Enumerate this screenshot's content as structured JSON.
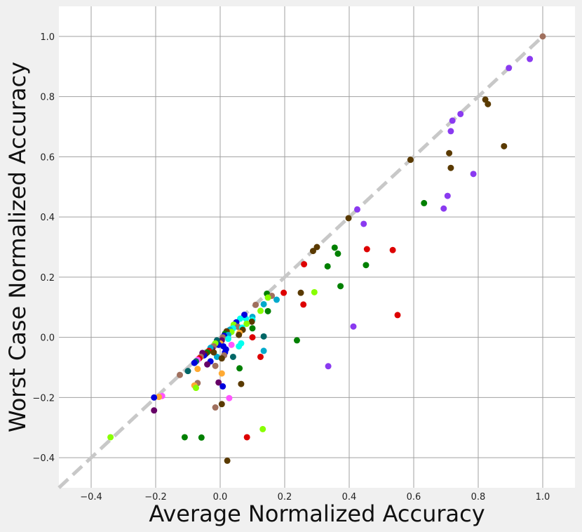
{
  "chart_data": {
    "type": "scatter",
    "title": "",
    "xlabel": "Average Normalized Accuracy",
    "ylabel": "Worst Case Normalized Accuracy",
    "xlim": [
      -0.5,
      1.1
    ],
    "ylim": [
      -0.5,
      1.1
    ],
    "xticks": [
      -0.4,
      -0.2,
      0.0,
      0.2,
      0.4,
      0.6,
      0.8,
      1.0
    ],
    "yticks": [
      -0.4,
      -0.2,
      0.0,
      0.2,
      0.4,
      0.6,
      0.8,
      1.0
    ],
    "xtick_labels": [
      "−0.4",
      "−0.2",
      "0.0",
      "0.2",
      "0.4",
      "0.6",
      "0.8",
      "1.0"
    ],
    "ytick_labels": [
      "−0.4",
      "−0.2",
      "0.0",
      "0.2",
      "0.4",
      "0.6",
      "0.8",
      "1.0"
    ],
    "grid": true,
    "reference_line": {
      "style": "dashed",
      "color": "#c8c8c8",
      "from": [
        -0.5,
        -0.5
      ],
      "to": [
        1.0,
        1.0
      ]
    },
    "colors": {
      "background": "#f0f0f0",
      "plot_area": "#ffffff",
      "grid": "#a0a0a0"
    },
    "points": [
      {
        "x": 1.0,
        "y": 1.0,
        "color": "#a0705e"
      },
      {
        "x": 0.96,
        "y": 0.925,
        "color": "#8a3af0"
      },
      {
        "x": 0.895,
        "y": 0.895,
        "color": "#8a3af0"
      },
      {
        "x": 0.822,
        "y": 0.79,
        "color": "#5a3a00"
      },
      {
        "x": 0.83,
        "y": 0.775,
        "color": "#5a3a00"
      },
      {
        "x": 0.745,
        "y": 0.742,
        "color": "#8a3af0"
      },
      {
        "x": 0.72,
        "y": 0.72,
        "color": "#8a3af0"
      },
      {
        "x": 0.715,
        "y": 0.685,
        "color": "#8a3af0"
      },
      {
        "x": 0.71,
        "y": 0.612,
        "color": "#5a3a00"
      },
      {
        "x": 0.88,
        "y": 0.635,
        "color": "#5a3a00"
      },
      {
        "x": 0.715,
        "y": 0.563,
        "color": "#5a3a00"
      },
      {
        "x": 0.59,
        "y": 0.59,
        "color": "#5a3a00"
      },
      {
        "x": 0.785,
        "y": 0.543,
        "color": "#8a3af0"
      },
      {
        "x": 0.705,
        "y": 0.47,
        "color": "#8a3af0"
      },
      {
        "x": 0.693,
        "y": 0.428,
        "color": "#8a3af0"
      },
      {
        "x": 0.632,
        "y": 0.446,
        "color": "#008000"
      },
      {
        "x": 0.425,
        "y": 0.425,
        "color": "#8a3af0"
      },
      {
        "x": 0.398,
        "y": 0.396,
        "color": "#5a3a00"
      },
      {
        "x": 0.445,
        "y": 0.377,
        "color": "#8a3af0"
      },
      {
        "x": 0.3,
        "y": 0.3,
        "color": "#5a3a00"
      },
      {
        "x": 0.288,
        "y": 0.287,
        "color": "#5a3a00"
      },
      {
        "x": 0.355,
        "y": 0.298,
        "color": "#008000"
      },
      {
        "x": 0.365,
        "y": 0.278,
        "color": "#008000"
      },
      {
        "x": 0.455,
        "y": 0.293,
        "color": "#dd0000"
      },
      {
        "x": 0.535,
        "y": 0.29,
        "color": "#dd0000"
      },
      {
        "x": 0.26,
        "y": 0.243,
        "color": "#dd0000"
      },
      {
        "x": 0.333,
        "y": 0.236,
        "color": "#008000"
      },
      {
        "x": 0.452,
        "y": 0.24,
        "color": "#008000"
      },
      {
        "x": 0.373,
        "y": 0.17,
        "color": "#008000"
      },
      {
        "x": 0.55,
        "y": 0.074,
        "color": "#dd0000"
      },
      {
        "x": 0.413,
        "y": 0.036,
        "color": "#8a3af0"
      },
      {
        "x": 0.335,
        "y": -0.096,
        "color": "#8a3af0"
      },
      {
        "x": 0.292,
        "y": 0.15,
        "color": "#88ff00"
      },
      {
        "x": 0.25,
        "y": 0.148,
        "color": "#5a3a00"
      },
      {
        "x": 0.197,
        "y": 0.148,
        "color": "#dd0000"
      },
      {
        "x": 0.258,
        "y": 0.109,
        "color": "#dd0000"
      },
      {
        "x": 0.238,
        "y": -0.01,
        "color": "#008000"
      },
      {
        "x": 0.145,
        "y": 0.145,
        "color": "#008000"
      },
      {
        "x": 0.16,
        "y": 0.138,
        "color": "#a0705e"
      },
      {
        "x": 0.148,
        "y": 0.132,
        "color": "#88ff00"
      },
      {
        "x": 0.175,
        "y": 0.125,
        "color": "#00aacc"
      },
      {
        "x": 0.135,
        "y": 0.11,
        "color": "#00aacc"
      },
      {
        "x": 0.11,
        "y": 0.108,
        "color": "#a0705e"
      },
      {
        "x": 0.125,
        "y": 0.088,
        "color": "#88ff00"
      },
      {
        "x": 0.148,
        "y": 0.087,
        "color": "#008000"
      },
      {
        "x": 0.1,
        "y": 0.068,
        "color": "#00aacc"
      },
      {
        "x": 0.1,
        "y": 0.058,
        "color": "#00ffee"
      },
      {
        "x": 0.08,
        "y": 0.062,
        "color": "#00ffee"
      },
      {
        "x": 0.098,
        "y": 0.052,
        "color": "#5a3a00"
      },
      {
        "x": 0.075,
        "y": 0.075,
        "color": "#0000dd"
      },
      {
        "x": 0.062,
        "y": 0.062,
        "color": "#00ffee"
      },
      {
        "x": 0.082,
        "y": 0.045,
        "color": "#88ff00"
      },
      {
        "x": 0.05,
        "y": 0.05,
        "color": "#0000dd"
      },
      {
        "x": 0.042,
        "y": 0.042,
        "color": "#88ff00"
      },
      {
        "x": 0.055,
        "y": 0.035,
        "color": "#a0705e"
      },
      {
        "x": 0.068,
        "y": 0.032,
        "color": "#00ffee"
      },
      {
        "x": 0.07,
        "y": 0.025,
        "color": "#5a3a00"
      },
      {
        "x": 0.1,
        "y": 0.03,
        "color": "#008000"
      },
      {
        "x": 0.04,
        "y": 0.03,
        "color": "#00ffee"
      },
      {
        "x": 0.03,
        "y": 0.025,
        "color": "#00aacc"
      },
      {
        "x": 0.035,
        "y": 0.018,
        "color": "#88ff00"
      },
      {
        "x": 0.02,
        "y": 0.02,
        "color": "#5a3a00"
      },
      {
        "x": 0.015,
        "y": 0.012,
        "color": "#008000"
      },
      {
        "x": 0.025,
        "y": 0.008,
        "color": "#00aacc"
      },
      {
        "x": 0.06,
        "y": 0.015,
        "color": "#ffaa33"
      },
      {
        "x": 0.058,
        "y": 0.008,
        "color": "#5a3a00"
      },
      {
        "x": 0.012,
        "y": 0.005,
        "color": "#0000dd"
      },
      {
        "x": 0.008,
        "y": 0.0,
        "color": "#a0705e"
      },
      {
        "x": 0.135,
        "y": 0.003,
        "color": "#006666"
      },
      {
        "x": 0.1,
        "y": 0.0,
        "color": "#dd0000"
      },
      {
        "x": 0.065,
        "y": -0.02,
        "color": "#00ffee"
      },
      {
        "x": 0.058,
        "y": -0.03,
        "color": "#00ffee"
      },
      {
        "x": 0.035,
        "y": -0.025,
        "color": "#ff55ff"
      },
      {
        "x": 0.025,
        "y": -0.005,
        "color": "#00ffee"
      },
      {
        "x": 0.005,
        "y": -0.01,
        "color": "#660066"
      },
      {
        "x": 0.0,
        "y": -0.02,
        "color": "#ffaa33"
      },
      {
        "x": -0.005,
        "y": -0.025,
        "color": "#0000dd"
      },
      {
        "x": 0.01,
        "y": -0.03,
        "color": "#0000dd"
      },
      {
        "x": 0.018,
        "y": -0.04,
        "color": "#0000dd"
      },
      {
        "x": -0.01,
        "y": -0.01,
        "color": "#006666"
      },
      {
        "x": -0.015,
        "y": -0.02,
        "color": "#88ff00"
      },
      {
        "x": -0.02,
        "y": -0.03,
        "color": "#a0705e"
      },
      {
        "x": -0.025,
        "y": -0.04,
        "color": "#660066"
      },
      {
        "x": -0.03,
        "y": -0.035,
        "color": "#00aacc"
      },
      {
        "x": -0.035,
        "y": -0.045,
        "color": "#dd0000"
      },
      {
        "x": -0.04,
        "y": -0.05,
        "color": "#008000"
      },
      {
        "x": -0.045,
        "y": -0.055,
        "color": "#5a3a00"
      },
      {
        "x": -0.05,
        "y": -0.06,
        "color": "#0000dd"
      },
      {
        "x": -0.055,
        "y": -0.052,
        "color": "#660066"
      },
      {
        "x": -0.06,
        "y": -0.065,
        "color": "#a0705e"
      },
      {
        "x": -0.065,
        "y": -0.07,
        "color": "#dd0000"
      },
      {
        "x": -0.07,
        "y": -0.075,
        "color": "#ff55ff"
      },
      {
        "x": -0.075,
        "y": -0.08,
        "color": "#006666"
      },
      {
        "x": -0.08,
        "y": -0.085,
        "color": "#0000dd"
      },
      {
        "x": -0.03,
        "y": -0.08,
        "color": "#0000dd"
      },
      {
        "x": -0.04,
        "y": -0.09,
        "color": "#660066"
      },
      {
        "x": 0.04,
        "y": -0.065,
        "color": "#006666"
      },
      {
        "x": 0.015,
        "y": -0.05,
        "color": "#0000dd"
      },
      {
        "x": 0.012,
        "y": -0.06,
        "color": "#a0705e"
      },
      {
        "x": -0.01,
        "y": -0.065,
        "color": "#00aacc"
      },
      {
        "x": 0.005,
        "y": -0.07,
        "color": "#5a3a00"
      },
      {
        "x": -0.02,
        "y": -0.05,
        "color": "#5a3a00"
      },
      {
        "x": 0.135,
        "y": -0.045,
        "color": "#00aacc"
      },
      {
        "x": 0.125,
        "y": -0.065,
        "color": "#dd0000"
      },
      {
        "x": 0.06,
        "y": -0.103,
        "color": "#008000"
      },
      {
        "x": -0.015,
        "y": -0.095,
        "color": "#a0705e"
      },
      {
        "x": -0.07,
        "y": -0.105,
        "color": "#ffaa33"
      },
      {
        "x": -0.1,
        "y": -0.112,
        "color": "#006666"
      },
      {
        "x": -0.125,
        "y": -0.125,
        "color": "#a0705e"
      },
      {
        "x": 0.005,
        "y": -0.12,
        "color": "#ffaa33"
      },
      {
        "x": -0.005,
        "y": -0.15,
        "color": "#660066"
      },
      {
        "x": -0.07,
        "y": -0.152,
        "color": "#a0705e"
      },
      {
        "x": -0.08,
        "y": -0.16,
        "color": "#ffaa33"
      },
      {
        "x": -0.075,
        "y": -0.168,
        "color": "#88ff00"
      },
      {
        "x": 0.008,
        "y": -0.163,
        "color": "#0000dd"
      },
      {
        "x": 0.065,
        "y": -0.155,
        "color": "#5a3a00"
      },
      {
        "x": -0.18,
        "y": -0.195,
        "color": "#ff55ff"
      },
      {
        "x": -0.19,
        "y": -0.198,
        "color": "#ffaa33"
      },
      {
        "x": -0.205,
        "y": -0.2,
        "color": "#0000dd"
      },
      {
        "x": 0.028,
        "y": -0.202,
        "color": "#ff55ff"
      },
      {
        "x": 0.005,
        "y": -0.222,
        "color": "#5a3a00"
      },
      {
        "x": -0.015,
        "y": -0.233,
        "color": "#a0705e"
      },
      {
        "x": -0.205,
        "y": -0.243,
        "color": "#660066"
      },
      {
        "x": 0.132,
        "y": -0.305,
        "color": "#88ff00"
      },
      {
        "x": -0.34,
        "y": -0.332,
        "color": "#88ff00"
      },
      {
        "x": -0.11,
        "y": -0.332,
        "color": "#008000"
      },
      {
        "x": -0.058,
        "y": -0.333,
        "color": "#008000"
      },
      {
        "x": 0.083,
        "y": -0.332,
        "color": "#dd0000"
      },
      {
        "x": 0.022,
        "y": -0.41,
        "color": "#5a3a00"
      }
    ]
  }
}
